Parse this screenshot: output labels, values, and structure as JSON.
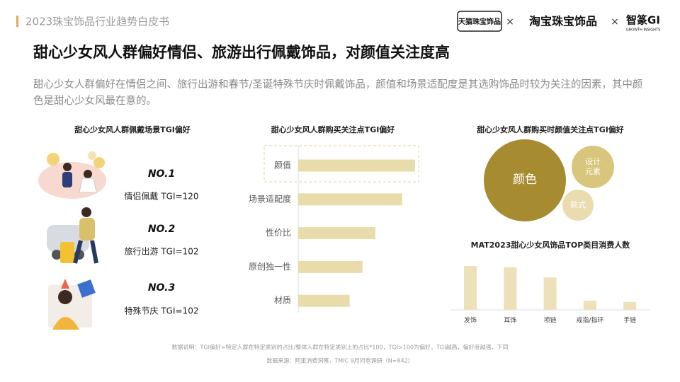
{
  "header": {
    "report": "2023珠宝饰品行业趋势白皮书",
    "logo_tmall": "天猫珠宝饰品",
    "sep1": "×",
    "logo_taobao": "淘宝珠宝饰品",
    "sep2": "×",
    "logo_gi": "智篆GI",
    "logo_gi_sub": "GROWTH INSIGHTS"
  },
  "title": "甜心少女风人群偏好情侣、旅游出行佩戴饰品，对颜值关注度高",
  "subtitle": "甜心少女人群偏好在情侣之间、旅行出游和春节/圣诞特殊节庆时佩戴饰品，颜值和场景适配度是其选购饰品时较为关注的因素，其中颜色是甜心少女风最在意的。",
  "scene_panel": {
    "title": "甜心少女风人群佩戴场景TGI偏好",
    "items": [
      {
        "rank": "NO.1",
        "label": "情侣佩戴   TGI=120"
      },
      {
        "rank": "NO.2",
        "label": "旅行出游  TGI=102"
      },
      {
        "rank": "NO.3",
        "label": "特殊节庆  TGI=102"
      }
    ]
  },
  "chart_data": [
    {
      "type": "hbar",
      "title": "甜心少女风人群购买关注点TGI偏好",
      "categories": [
        "颜值",
        "场景适配度",
        "性价比",
        "原创独一性",
        "材质"
      ],
      "values": [
        100,
        89,
        66,
        55,
        44
      ],
      "color": "#e8dcaa"
    },
    {
      "type": "bubble",
      "title": "甜心少女风人群购买时颜值关注点TGI偏好",
      "categories": [
        "颜色",
        "设计元素",
        "款式"
      ],
      "values": [
        100,
        27,
        14
      ],
      "colors": [
        "#a68b30",
        "#d8c67c",
        "#e9ddb0"
      ]
    },
    {
      "type": "bar",
      "title": "MAT2023甜心少女风饰品TOP类目消费人数",
      "categories": [
        "发饰",
        "耳饰",
        "项链",
        "戒指/指环",
        "手链"
      ],
      "values": [
        100,
        97,
        74,
        21,
        18
      ],
      "color": "#ece1b8"
    }
  ],
  "footer": {
    "note": "数据说明：TGI偏好=特定人群在特定类别的占比/整体人群在特定类别上的占比*100，TGI>100为偏好，TGI越高，偏好度越强，下同",
    "source": "数据来源：阿里消费洞察，TMIC 9月问卷调研（N=842）"
  }
}
